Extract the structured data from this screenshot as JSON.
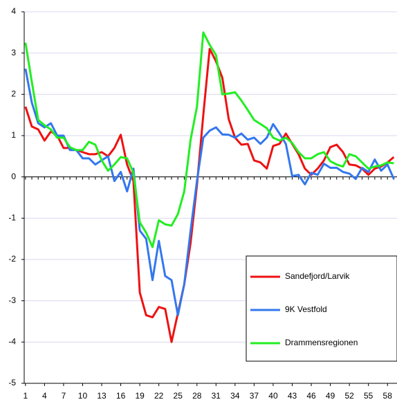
{
  "chart_data": {
    "type": "line",
    "x": [
      1,
      2,
      3,
      4,
      5,
      6,
      7,
      8,
      9,
      10,
      11,
      12,
      13,
      14,
      15,
      16,
      17,
      18,
      19,
      20,
      21,
      22,
      23,
      24,
      25,
      26,
      27,
      28,
      29,
      30,
      31,
      32,
      33,
      34,
      35,
      36,
      37,
      38,
      39,
      40,
      41,
      42,
      43,
      44,
      45,
      46,
      47,
      48,
      49,
      50,
      51,
      52,
      53,
      54,
      55,
      56,
      57,
      58,
      59
    ],
    "xlim": [
      0.8,
      59.5
    ],
    "xticks": [
      1,
      4,
      7,
      10,
      13,
      16,
      19,
      22,
      25,
      28,
      31,
      34,
      37,
      40,
      43,
      46,
      49,
      52,
      55,
      58
    ],
    "ylim": [
      -5,
      4
    ],
    "yticks": [
      -5,
      -4,
      -3,
      -2,
      -1,
      0,
      1,
      2,
      3,
      4
    ],
    "grid": true,
    "legend": "lower right",
    "series": [
      {
        "name": "Sandefjord/Larvik",
        "color": "#ee1111",
        "values": [
          1.7,
          1.22,
          1.15,
          0.88,
          1.1,
          1.0,
          0.7,
          0.7,
          0.65,
          0.6,
          0.55,
          0.55,
          0.6,
          0.5,
          0.7,
          1.02,
          0.3,
          -0.1,
          -2.8,
          -3.35,
          -3.4,
          -3.15,
          -3.2,
          -4.0,
          -3.3,
          -2.6,
          -1.6,
          -0.2,
          1.5,
          3.1,
          2.8,
          2.4,
          1.4,
          0.95,
          0.78,
          0.8,
          0.4,
          0.35,
          0.2,
          0.75,
          0.8,
          1.05,
          0.8,
          0.55,
          0.2,
          0.05,
          0.2,
          0.4,
          0.72,
          0.78,
          0.6,
          0.3,
          0.28,
          0.2,
          0.05,
          0.2,
          0.25,
          0.35,
          0.48
        ]
      },
      {
        "name": "9K Vestfold",
        "color": "#3377ee",
        "values": [
          2.62,
          1.8,
          1.3,
          1.2,
          1.3,
          1.0,
          1.0,
          0.65,
          0.65,
          0.45,
          0.45,
          0.3,
          0.4,
          0.5,
          -0.1,
          0.12,
          -0.35,
          0.2,
          -1.3,
          -1.5,
          -2.5,
          -1.55,
          -2.4,
          -2.5,
          -3.35,
          -2.6,
          -1.3,
          -0.1,
          0.95,
          1.12,
          1.2,
          1.03,
          1.02,
          0.95,
          1.05,
          0.9,
          0.95,
          0.8,
          0.95,
          1.28,
          1.05,
          0.8,
          0.02,
          0.05,
          -0.18,
          0.1,
          0.05,
          0.32,
          0.22,
          0.22,
          0.12,
          0.08,
          -0.05,
          0.22,
          0.12,
          0.42,
          0.15,
          0.3,
          -0.05
        ]
      },
      {
        "name": "Drammensregionen",
        "color": "#22ee22",
        "values": [
          3.25,
          2.3,
          1.38,
          1.25,
          1.15,
          0.95,
          0.95,
          0.72,
          0.65,
          0.65,
          0.85,
          0.78,
          0.4,
          0.15,
          0.3,
          0.48,
          0.45,
          0.1,
          -1.1,
          -1.35,
          -1.7,
          -1.05,
          -1.15,
          -1.18,
          -0.9,
          -0.35,
          0.9,
          1.7,
          3.5,
          3.2,
          2.95,
          2.0,
          2.02,
          2.05,
          1.85,
          1.62,
          1.38,
          1.28,
          1.18,
          0.95,
          0.88,
          0.95,
          0.82,
          0.6,
          0.45,
          0.45,
          0.55,
          0.6,
          0.38,
          0.3,
          0.25,
          0.55,
          0.5,
          0.35,
          0.2,
          0.25,
          0.28,
          0.35,
          0.33
        ]
      }
    ]
  }
}
